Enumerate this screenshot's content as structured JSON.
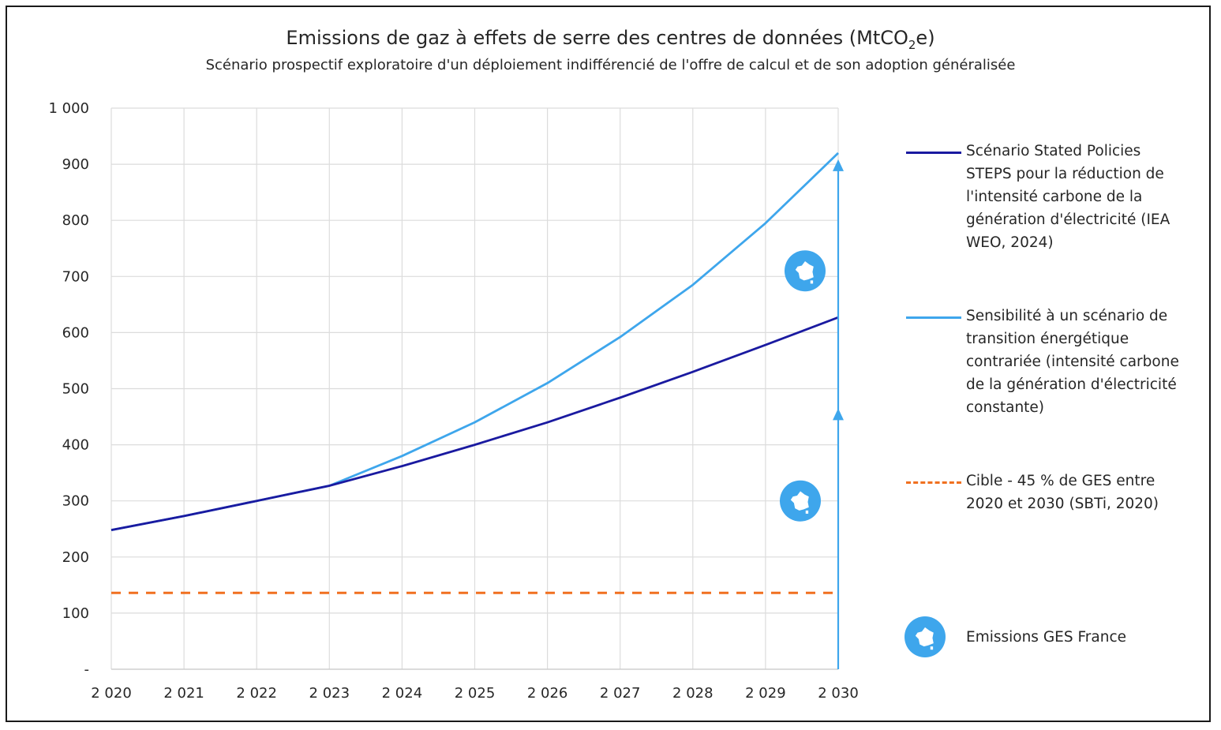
{
  "chart_data": {
    "type": "line",
    "title_main": "Emissions de gaz à effets de serre des centres de données (MtCO",
    "title_sub": "2",
    "title_end": "e)",
    "subtitle": "Scénario prospectif exploratoire d'un déploiement indifférencié de l'offre de calcul et de son adoption généralisée",
    "x": [
      "2 020",
      "2 021",
      "2 022",
      "2 023",
      "2 024",
      "2 025",
      "2 026",
      "2 027",
      "2 028",
      "2 029",
      "2 030"
    ],
    "ylim": [
      0,
      1000
    ],
    "yticks": [
      {
        "value": 0,
        "label": "-"
      },
      {
        "value": 100,
        "label": "100"
      },
      {
        "value": 200,
        "label": "200"
      },
      {
        "value": 300,
        "label": "300"
      },
      {
        "value": 400,
        "label": "400"
      },
      {
        "value": 500,
        "label": "500"
      },
      {
        "value": 600,
        "label": "600"
      },
      {
        "value": 700,
        "label": "700"
      },
      {
        "value": 800,
        "label": "800"
      },
      {
        "value": 900,
        "label": "900"
      },
      {
        "value": 1000,
        "label": "1 000"
      }
    ],
    "grid": true,
    "series": [
      {
        "name": "Scénario Stated Policies STEPS pour la réduction de l'intensité carbone de la génération d'électricité (IEA WEO, 2024)",
        "color": "#1a1aa0",
        "style": "solid",
        "values": [
          248,
          273,
          300,
          327,
          362,
          400,
          440,
          484,
          530,
          578,
          627
        ]
      },
      {
        "name": "Sensibilité à un scénario de transition énergétique contrariée (intensité carbone de la génération d'électricité constante)",
        "color": "#3ea6ec",
        "style": "solid",
        "values": [
          248,
          273,
          300,
          327,
          380,
          440,
          510,
          592,
          685,
          795,
          920
        ]
      },
      {
        "name": "Cible - 45 % de GES entre 2020 et 2030 (SBTi, 2020)",
        "color": "#f07020",
        "style": "dashed",
        "values": [
          136,
          136,
          136,
          136,
          136,
          136,
          136,
          136,
          136,
          136,
          136
        ]
      }
    ],
    "annotations": {
      "france_marker_values": [
        710,
        300
      ],
      "arrow_color": "#3ea6ec",
      "arrow_at_x": "2 030",
      "arrow_tips": [
        920,
        465
      ],
      "marker_label": "Emissions GES  France"
    },
    "legend": [
      {
        "label": "Scénario Stated Policies STEPS pour la réduction de l'intensité carbone de la génération d'électricité (IEA WEO, 2024)",
        "color": "#1a1aa0",
        "style": "solid"
      },
      {
        "label": "Sensibilité à un scénario de transition énergétique contrariée (intensité carbone de la génération d'électricité constante)",
        "color": "#3ea6ec",
        "style": "solid"
      },
      {
        "label": "Cible - 45 % de GES entre 2020 et 2030 (SBTi, 2020)",
        "color": "#f07020",
        "style": "dashed"
      },
      {
        "label": "Emissions GES  France",
        "color": "#3ea6ec",
        "style": "marker"
      }
    ],
    "legend_position": "right"
  }
}
